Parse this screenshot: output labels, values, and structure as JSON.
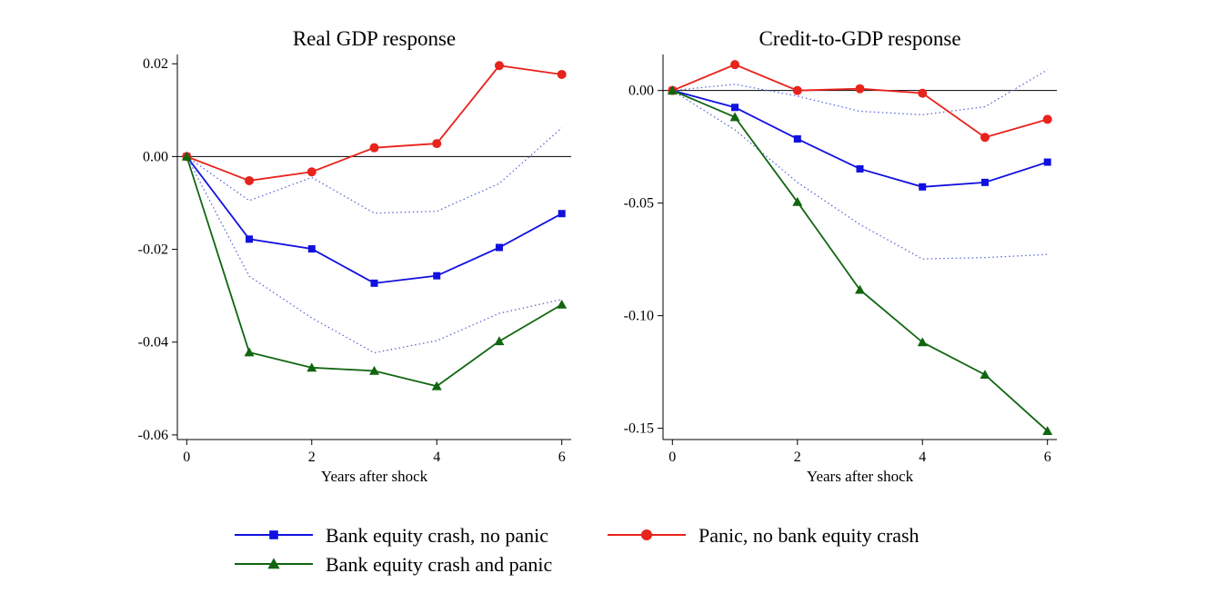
{
  "chart_data": [
    {
      "type": "line",
      "title": "Real GDP response",
      "xlabel": "Years after shock",
      "ylabel": "",
      "x": [
        0,
        1,
        2,
        3,
        4,
        5,
        6
      ],
      "xticks": [
        0,
        2,
        4,
        6
      ],
      "xtick_labels": [
        "0",
        "2",
        "4",
        "6"
      ],
      "xlim": [
        -0.15,
        6.15
      ],
      "yticks": [
        0.02,
        0.0,
        -0.02,
        -0.04,
        -0.06
      ],
      "ytick_labels": [
        "0.02",
        "0.00",
        "-0.02",
        "-0.04",
        "-0.06"
      ],
      "ylim": [
        -0.061,
        0.022
      ],
      "zero_line": true,
      "series": [
        {
          "name": "Bank equity crash, no panic",
          "color": "#1010e0",
          "marker": "square",
          "values": [
            0.0,
            -0.0178,
            -0.0199,
            -0.0273,
            -0.0257,
            -0.0196,
            -0.0123
          ]
        },
        {
          "name": "Panic, no bank equity crash",
          "color": "#e8221c",
          "marker": "circle",
          "values": [
            0.0,
            -0.0052,
            -0.0033,
            0.0019,
            0.0028,
            0.0196,
            0.0177
          ]
        },
        {
          "name": "Bank equity crash and panic",
          "color": "#116611",
          "marker": "triangle",
          "values": [
            0.0,
            -0.0422,
            -0.0455,
            -0.0462,
            -0.0495,
            -0.0398,
            -0.0319
          ]
        }
      ],
      "bands": [
        {
          "name": "upper",
          "color": "#5a6ad8",
          "values": [
            0.0,
            -0.0095,
            -0.0045,
            -0.0122,
            -0.0118,
            -0.0058,
            0.0062
          ]
        },
        {
          "name": "lower",
          "color": "#5a6ad8",
          "values": [
            0.0,
            -0.0258,
            -0.0348,
            -0.0423,
            -0.0397,
            -0.0338,
            -0.0308
          ]
        }
      ]
    },
    {
      "type": "line",
      "title": "Credit-to-GDP response",
      "xlabel": "Years after shock",
      "ylabel": "",
      "x": [
        0,
        1,
        2,
        3,
        4,
        5,
        6
      ],
      "xticks": [
        0,
        2,
        4,
        6
      ],
      "xtick_labels": [
        "0",
        "2",
        "4",
        "6"
      ],
      "xlim": [
        -0.15,
        6.15
      ],
      "yticks": [
        0.0,
        -0.05,
        -0.1,
        -0.15
      ],
      "ytick_labels": [
        "0.00",
        "-0.05",
        "-0.10",
        "-0.15"
      ],
      "ylim": [
        -0.155,
        0.016
      ],
      "zero_line": true,
      "series": [
        {
          "name": "Bank equity crash, no panic",
          "color": "#1010e0",
          "marker": "square",
          "values": [
            0.0,
            -0.0075,
            -0.0215,
            -0.0348,
            -0.0428,
            -0.0408,
            -0.0318
          ]
        },
        {
          "name": "Panic, no bank equity crash",
          "color": "#e8221c",
          "marker": "circle",
          "values": [
            0.0,
            0.0115,
            0.0,
            0.0008,
            -0.0012,
            -0.0208,
            -0.0128
          ]
        },
        {
          "name": "Bank equity crash and panic",
          "color": "#116611",
          "marker": "triangle",
          "values": [
            0.0,
            -0.0118,
            -0.0495,
            -0.0885,
            -0.1118,
            -0.1262,
            -0.1512
          ]
        }
      ],
      "bands": [
        {
          "name": "upper",
          "color": "#5a6ad8",
          "values": [
            0.0,
            0.0028,
            -0.0025,
            -0.0092,
            -0.0108,
            -0.0072,
            0.0092
          ]
        },
        {
          "name": "lower",
          "color": "#5a6ad8",
          "values": [
            0.0,
            -0.0175,
            -0.0408,
            -0.0595,
            -0.0748,
            -0.0742,
            -0.0728
          ]
        }
      ]
    }
  ],
  "legend": [
    {
      "label": "Bank equity crash, no panic",
      "color": "#1010e0",
      "marker": "square"
    },
    {
      "label": "Panic, no bank equity crash",
      "color": "#e8221c",
      "marker": "circle"
    },
    {
      "label": "Bank equity crash and panic",
      "color": "#116611",
      "marker": "triangle"
    }
  ]
}
